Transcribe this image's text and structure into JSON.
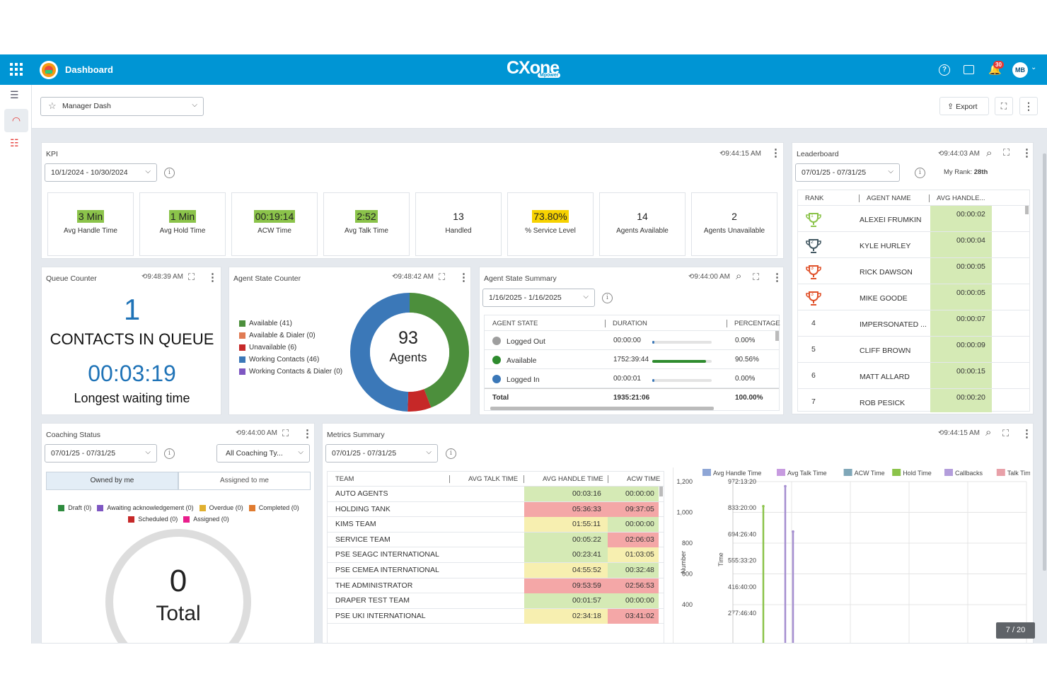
{
  "header": {
    "title": "Dashboard",
    "brand": "CXone",
    "brand_sub": "Mpower",
    "notification_count": "30",
    "avatar": "MB"
  },
  "toolbar": {
    "dashboard_select": "Manager Dash",
    "export_label": "Export"
  },
  "kpi": {
    "title": "KPI",
    "time": "9:44:15 AM",
    "date_range": "10/1/2024 - 10/30/2024",
    "cards": [
      {
        "value": "3 Min",
        "label": "Avg Handle Time",
        "hl": "green"
      },
      {
        "value": "1 Min",
        "label": "Avg Hold Time",
        "hl": "green"
      },
      {
        "value": "00:19:14",
        "label": "ACW Time",
        "hl": "green"
      },
      {
        "value": "2:52",
        "label": "Avg Talk Time",
        "hl": "green"
      },
      {
        "value": "13",
        "label": "Handled",
        "hl": ""
      },
      {
        "value": "73.80%",
        "label": "% Service Level",
        "hl": "yellow"
      },
      {
        "value": "14",
        "label": "Agents Available",
        "hl": ""
      },
      {
        "value": "2",
        "label": "Agents Unavailable",
        "hl": ""
      }
    ]
  },
  "leaderboard": {
    "title": "Leaderboard",
    "time": "9:44:03 AM",
    "date_range": "07/01/25 - 07/31/25",
    "my_rank_label": "My Rank:",
    "my_rank": "28th",
    "columns": [
      "RANK",
      "AGENT NAME",
      "AVG HANDLE..."
    ],
    "rows": [
      {
        "rank": "1",
        "name": "ALEXEI FRUMKIN",
        "value": "00:00:02",
        "trophy": "#8bc34a"
      },
      {
        "rank": "2",
        "name": "KYLE HURLEY",
        "value": "00:00:04",
        "trophy": "#455a64"
      },
      {
        "rank": "3",
        "name": "RICK DAWSON",
        "value": "00:00:05",
        "trophy": "#e0522b"
      },
      {
        "rank": "3",
        "name": "MIKE GOODE",
        "value": "00:00:05",
        "trophy": "#e0522b"
      },
      {
        "rank": "4",
        "name": "IMPERSONATED ...",
        "value": "00:00:07",
        "trophy": ""
      },
      {
        "rank": "5",
        "name": "CLIFF BROWN",
        "value": "00:00:09",
        "trophy": ""
      },
      {
        "rank": "6",
        "name": "MATT ALLARD",
        "value": "00:00:15",
        "trophy": ""
      },
      {
        "rank": "7",
        "name": "ROB PESICK",
        "value": "00:00:20",
        "trophy": ""
      }
    ]
  },
  "queue": {
    "title": "Queue Counter",
    "time": "9:48:39 AM",
    "count": "1",
    "count_label": "CONTACTS IN QUEUE",
    "wait": "00:03:19",
    "wait_label": "Longest waiting time"
  },
  "agent_state_counter": {
    "title": "Agent State Counter",
    "time": "9:48:42 AM",
    "total": "93",
    "total_label": "Agents",
    "legend": [
      {
        "label": "Available (41)",
        "color": "#4c8f3c",
        "value": 41
      },
      {
        "label": "Available & Dialer (0)",
        "color": "#e07b53",
        "value": 0
      },
      {
        "label": "Unavailable (6)",
        "color": "#c62828",
        "value": 6
      },
      {
        "label": "Working Contacts (46)",
        "color": "#3b78b8",
        "value": 46
      },
      {
        "label": "Working Contacts & Dialer (0)",
        "color": "#7e57c2",
        "value": 0
      }
    ]
  },
  "agent_state_summary": {
    "title": "Agent State Summary",
    "time": "9:44:00 AM",
    "date_range": "1/16/2025 - 1/16/2025",
    "columns": [
      "AGENT STATE",
      "DURATION",
      "PERCENTAGE"
    ],
    "rows": [
      {
        "state": "Logged Out",
        "color": "#9e9e9e",
        "duration": "00:00:00",
        "pct": "0.00%",
        "fill": 0.0
      },
      {
        "state": "Available",
        "color": "#2e8b2e",
        "duration": "1752:39:44",
        "pct": "90.56%",
        "fill": 0.9056
      },
      {
        "state": "Logged In",
        "color": "#3b78b8",
        "duration": "00:00:01",
        "pct": "0.00%",
        "fill": 0.0
      }
    ],
    "total_label": "Total",
    "total_duration": "1935:21:06",
    "total_pct": "100.00%"
  },
  "coaching": {
    "title": "Coaching Status",
    "time": "9:44:00 AM",
    "date_range": "07/01/25 - 07/31/25",
    "filter": "All Coaching Ty...",
    "tabs": [
      "Owned by me",
      "Assigned to me"
    ],
    "legend": [
      {
        "label": "Draft (0)",
        "color": "#2e8b3e"
      },
      {
        "label": "Awaiting acknowledgement (0)",
        "color": "#7e57c2"
      },
      {
        "label": "Overdue (0)",
        "color": "#e0b030"
      },
      {
        "label": "Completed (0)",
        "color": "#e07b30"
      },
      {
        "label": "Scheduled (0)",
        "color": "#c62828"
      },
      {
        "label": "Assigned (0)",
        "color": "#e91e8c"
      }
    ],
    "total": "0",
    "total_label": "Total"
  },
  "metrics": {
    "title": "Metrics Summary",
    "time": "9:44:15 AM",
    "date_range": "07/01/25 - 07/31/25",
    "columns": [
      "TEAM",
      "AVG TALK TIME",
      "AVG HANDLE TIME",
      "ACW TIME"
    ],
    "rows": [
      {
        "team": "AUTO AGENTS",
        "talk": "",
        "handle": "00:03:16",
        "acw": "00:00:00",
        "hc": "#d5eab5",
        "ac": "#d5eab5"
      },
      {
        "team": "HOLDING TANK",
        "talk": "",
        "handle": "05:36:33",
        "acw": "09:37:05",
        "hc": "#f4a7a7",
        "ac": "#f4a7a7"
      },
      {
        "team": "KIMS TEAM",
        "talk": "",
        "handle": "01:55:11",
        "acw": "00:00:00",
        "hc": "#f7efb0",
        "ac": "#d5eab5"
      },
      {
        "team": "SERVICE TEAM",
        "talk": "",
        "handle": "00:05:22",
        "acw": "02:06:03",
        "hc": "#d5eab5",
        "ac": "#f4a7a7"
      },
      {
        "team": "PSE SEAGC INTERNATIONAL",
        "talk": "",
        "handle": "00:23:41",
        "acw": "01:03:05",
        "hc": "#d5eab5",
        "ac": "#f7efb0"
      },
      {
        "team": "PSE CEMEA INTERNATIONAL",
        "talk": "",
        "handle": "04:55:52",
        "acw": "00:32:48",
        "hc": "#f7efb0",
        "ac": "#d5eab5"
      },
      {
        "team": "THE ADMINISTRATOR",
        "talk": "",
        "handle": "09:53:59",
        "acw": "02:56:53",
        "hc": "#f4a7a7",
        "ac": "#f4a7a7"
      },
      {
        "team": "DRAPER TEST TEAM",
        "talk": "",
        "handle": "00:01:57",
        "acw": "00:00:00",
        "hc": "#d5eab5",
        "ac": "#d5eab5"
      },
      {
        "team": "PSE UKI INTERNATIONAL",
        "talk": "",
        "handle": "02:34:18",
        "acw": "03:41:02",
        "hc": "#f7efb0",
        "ac": "#f4a7a7"
      }
    ]
  },
  "chart_data": {
    "type": "line",
    "legend": [
      "Avg Handle Time",
      "Avg Talk Time",
      "ACW Time",
      "Hold Time",
      "Callbacks",
      "Talk Time"
    ],
    "legend_colors": [
      "#8ea6d6",
      "#c79be0",
      "#7fa7b8",
      "#8bc34a",
      "#b39ddb",
      "#e8a0a8"
    ],
    "ylabel": "Number",
    "ylabel2": "Time",
    "y_ticks": [
      "1,200",
      "1,000",
      "800",
      "600",
      "400"
    ],
    "y2_ticks": [
      "972:13:20",
      "833:20:00",
      "694:26:40",
      "555:33:20",
      "416:40:00",
      "277:46:40"
    ],
    "series": [
      {
        "color": "#8bc34a",
        "peak": 1040
      },
      {
        "color": "#a58ed0",
        "peak": 1170
      },
      {
        "color": "#a58ed0",
        "peak": 875
      }
    ],
    "ylim": [
      400,
      1200
    ]
  },
  "pager": "7 / 20"
}
